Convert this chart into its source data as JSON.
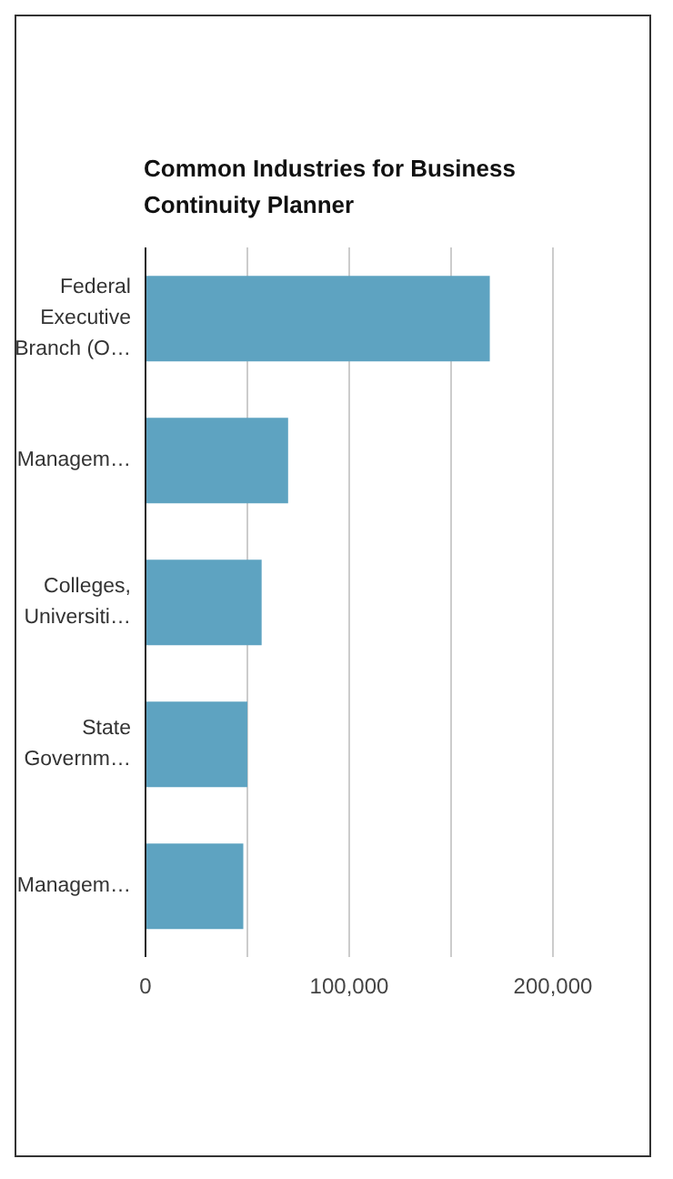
{
  "chart_data": {
    "type": "bar",
    "orientation": "horizontal",
    "title": "Common Industries for Business Continuity Planner",
    "categories": [
      "Federal Executive Branch (O…",
      "Managem…",
      "Colleges, Universiti…",
      "State Governm…",
      "Managem…"
    ],
    "values": [
      169000,
      70000,
      57000,
      50000,
      48000
    ],
    "color": "#5ea3c1",
    "xlim": [
      0,
      200000
    ],
    "xticks": [
      0,
      {
        "value": 50000,
        "label": null
      },
      {
        "value": 100000,
        "label": "100,000"
      },
      {
        "value": 150000,
        "label": null
      },
      {
        "value": 200000,
        "label": "200,000"
      }
    ],
    "grid": "x"
  }
}
